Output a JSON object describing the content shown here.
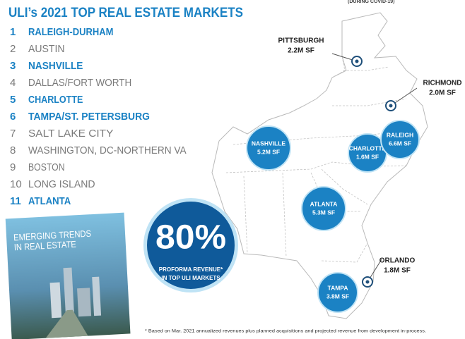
{
  "header": {
    "title": "ULI’s 2021 TOP REAL ESTATE MARKETS",
    "corner_note": "(DURING COVID-19)"
  },
  "rankings": [
    {
      "rank": "1",
      "name": "RALEIGH-DURHAM",
      "highlight": true
    },
    {
      "rank": "2",
      "name": "AUSTIN",
      "highlight": false
    },
    {
      "rank": "3",
      "name": "NASHVILLE",
      "highlight": true
    },
    {
      "rank": "4",
      "name": "DALLAS/FORT WORTH",
      "highlight": false
    },
    {
      "rank": "5",
      "name": "CHARLOTTE",
      "highlight": true
    },
    {
      "rank": "6",
      "name": "TAMPA/ST. PETERSBURG",
      "highlight": true
    },
    {
      "rank": "7",
      "name": "SALT LAKE CITY",
      "highlight": false
    },
    {
      "rank": "8",
      "name": "WASHINGTON, DC-NORTHERN VA",
      "highlight": false
    },
    {
      "rank": "9",
      "name": "BOSTON",
      "highlight": false
    },
    {
      "rank": "10",
      "name": "LONG ISLAND",
      "highlight": false
    },
    {
      "rank": "11",
      "name": "ATLANTA",
      "highlight": true
    }
  ],
  "book": {
    "title_line1": "EMERGING TRENDS",
    "title_line2": "IN REAL ESTATE"
  },
  "markets": [
    {
      "city": "PITTSBURGH",
      "size": "2.2M SF",
      "circle": false
    },
    {
      "city": "RICHMOND",
      "size": "2.0M SF",
      "circle": false
    },
    {
      "city": "NASHVILLE",
      "size": "5.2M SF",
      "circle": true
    },
    {
      "city": "CHARLOTTE",
      "size": "1.6M SF",
      "circle": true
    },
    {
      "city": "RALEIGH",
      "size": "6.6M SF",
      "circle": true
    },
    {
      "city": "ATLANTA",
      "size": "5.3M SF",
      "circle": true
    },
    {
      "city": "ORLANDO",
      "size": "1.8M SF",
      "circle": false
    },
    {
      "city": "TAMPA",
      "size": "3.8M SF",
      "circle": true
    }
  ],
  "stat": {
    "value": "80%",
    "caption_line1": "PROFORMA REVENUE*",
    "caption_line2": "IN TOP ULI MARKETS"
  },
  "footnote": "* Based on Mar. 2021 annualized revenues plus planned acquisitions and projected revenue from development in-process."
}
